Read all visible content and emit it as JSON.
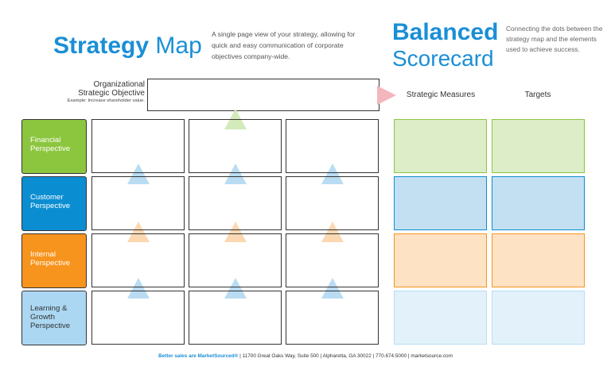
{
  "header": {
    "strategy_map": {
      "title_bold": "Strategy",
      "title_light": "Map",
      "description": "A single page view of your strategy, allowing for quick and easy communication of corporate objectives company-wide."
    },
    "balanced_scorecard": {
      "title_line1": "Balanced",
      "title_line2": "Scorecard",
      "description": "Connecting the dots between the strategy map and the elements used to achieve success."
    }
  },
  "objective": {
    "label_line1": "Organizational",
    "label_line2": "Strategic Objective",
    "example": "Example: Increase shareholder value.",
    "value": ""
  },
  "scorecard_columns": {
    "measures": "Strategic Measures",
    "targets": "Targets"
  },
  "perspectives": [
    {
      "line1": "Financial",
      "line2": "Perspective",
      "line3": ""
    },
    {
      "line1": "Customer",
      "line2": "Perspective",
      "line3": ""
    },
    {
      "line1": "Internal",
      "line2": "Perspective",
      "line3": ""
    },
    {
      "line1": "Learning &",
      "line2": "Growth",
      "line3": "Perspective"
    }
  ],
  "colors": {
    "financial": "#8cc63f",
    "customer": "#0b8ed1",
    "internal": "#f7941d",
    "learning": "#abd7f2",
    "brand_blue": "#1a8fd6",
    "arrow_pink": "#f4b6bd"
  },
  "footer": {
    "brand": "Better sales are MarketSourced®",
    "address": "11700 Great Oaks Way, Suite 500",
    "city": "Alpharetta, GA 30022",
    "phone": "770.674.5000",
    "website": "marketsource.com",
    "separator": "|"
  }
}
